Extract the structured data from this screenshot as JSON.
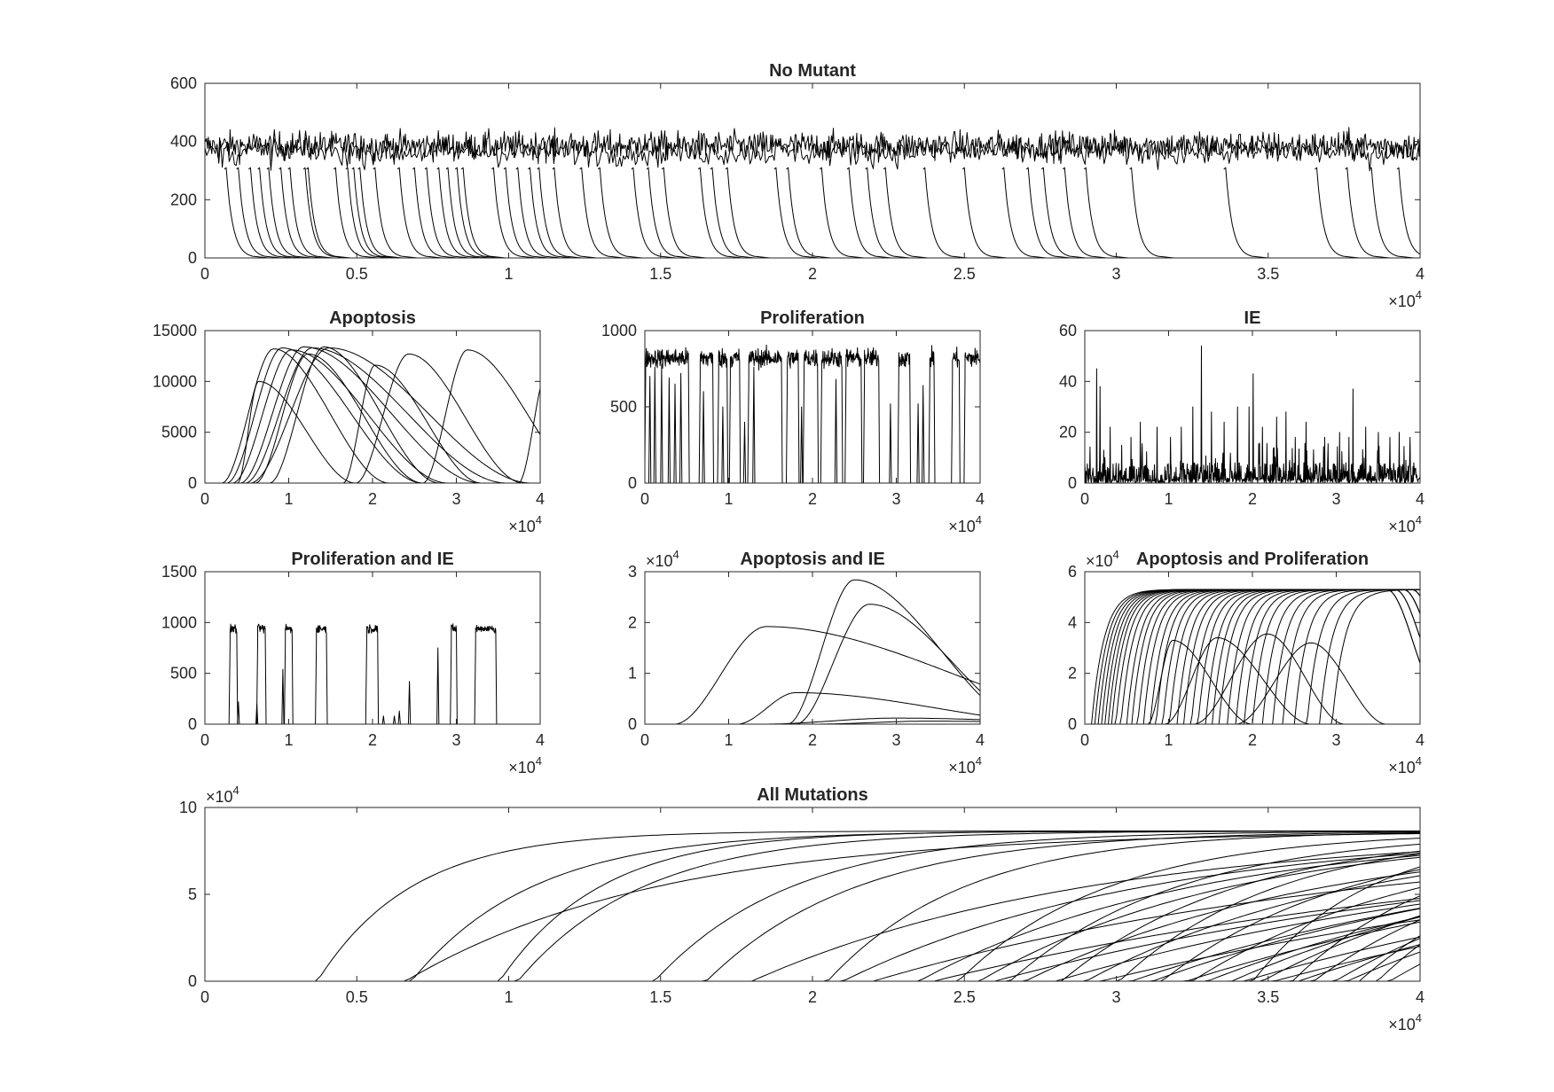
{
  "figure": {
    "background": "#ffffff",
    "line_color": "#000000",
    "axis_color": "#262626"
  },
  "chart_data": [
    {
      "id": "no-mutant",
      "type": "line",
      "title": "No Mutant",
      "xlim": [
        0,
        40000
      ],
      "ylim": [
        0,
        600
      ],
      "x_ticks": [
        0,
        5000,
        10000,
        15000,
        20000,
        25000,
        30000,
        35000,
        40000
      ],
      "x_tick_labels": [
        "0",
        "0.5",
        "1",
        "1.5",
        "2",
        "2.5",
        "3",
        "3.5",
        "4"
      ],
      "x_exponent": "4",
      "y_ticks": [
        0,
        200,
        400,
        600
      ],
      "y_tick_labels": [
        "0",
        "200",
        "400",
        "600"
      ],
      "y_exponent": "",
      "pattern": "noisy_band_with_extinctions",
      "band_level": 385,
      "band_noise": 35,
      "extinction_times": [
        700,
        1100,
        1500,
        1800,
        2100,
        2500,
        2800,
        3300,
        3400,
        4300,
        4700,
        4900,
        5100,
        5600,
        6400,
        6900,
        7300,
        7700,
        8000,
        8300,
        8500,
        9500,
        9900,
        10300,
        10700,
        11000,
        11500,
        12400,
        13000,
        14100,
        14600,
        15100,
        16300,
        16700,
        17200,
        18800,
        19200,
        20300,
        21200,
        21800,
        22400,
        23700,
        25000,
        26300,
        27100,
        27600,
        28300,
        29000,
        30500,
        33600,
        36600,
        37600,
        38400,
        39300
      ],
      "extinction_decay": 220
    },
    {
      "id": "apoptosis",
      "type": "line",
      "title": "Apoptosis",
      "xlim": [
        0,
        40000
      ],
      "ylim": [
        0,
        15000
      ],
      "x_ticks": [
        0,
        10000,
        20000,
        30000,
        40000
      ],
      "x_tick_labels": [
        "0",
        "1",
        "2",
        "3",
        "4"
      ],
      "x_exponent": "4",
      "y_ticks": [
        0,
        5000,
        10000,
        15000
      ],
      "y_tick_labels": [
        "0",
        "5000",
        "10000",
        "15000"
      ],
      "y_exponent": "",
      "pattern": "humps",
      "series": [
        {
          "start": 2000,
          "peak": 8200,
          "peak_value": 13200,
          "end": 22000
        },
        {
          "start": 2600,
          "peak": 9200,
          "peak_value": 13300,
          "end": 26000
        },
        {
          "start": 3300,
          "peak": 10300,
          "peak_value": 13100,
          "end": 29000
        },
        {
          "start": 3900,
          "peak": 6400,
          "peak_value": 10000,
          "end": 18000
        },
        {
          "start": 4200,
          "peak": 11800,
          "peak_value": 13400,
          "end": 33000
        },
        {
          "start": 4800,
          "peak": 12800,
          "peak_value": 13300,
          "end": 36000
        },
        {
          "start": 5400,
          "peak": 14800,
          "peak_value": 13300,
          "end": 39000
        },
        {
          "start": 6000,
          "peak": 12300,
          "peak_value": 12700,
          "end": 26000
        },
        {
          "start": 7700,
          "peak": 14200,
          "peak_value": 13400,
          "end": 28000
        },
        {
          "start": 16500,
          "peak": 20300,
          "peak_value": 11600,
          "end": 33000
        },
        {
          "start": 18000,
          "peak": 24300,
          "peak_value": 12700,
          "end": 38000
        },
        {
          "start": 26000,
          "peak": 31300,
          "peak_value": 13100,
          "end": 46000
        },
        {
          "start": 37400,
          "peak": 41000,
          "peak_value": 11500,
          "end": 52000
        }
      ]
    },
    {
      "id": "proliferation",
      "type": "line",
      "title": "Proliferation",
      "xlim": [
        0,
        40000
      ],
      "ylim": [
        0,
        1000
      ],
      "x_ticks": [
        0,
        10000,
        20000,
        30000,
        40000
      ],
      "x_tick_labels": [
        "0",
        "1",
        "2",
        "3",
        "4"
      ],
      "x_exponent": "4",
      "y_ticks": [
        0,
        500,
        1000
      ],
      "y_tick_labels": [
        "0",
        "500",
        "1000"
      ],
      "y_exponent": "",
      "pattern": "plateaus",
      "plateau_level": 820,
      "plateau_noise": 45,
      "segments": [
        [
          100,
          5200
        ],
        [
          6600,
          8100
        ],
        [
          8800,
          9800
        ],
        [
          10200,
          11300
        ],
        [
          12400,
          16300
        ],
        [
          17000,
          18300
        ],
        [
          19000,
          20600
        ],
        [
          21100,
          23500
        ],
        [
          24000,
          25800
        ],
        [
          26200,
          27900
        ],
        [
          30300,
          31600
        ],
        [
          34000,
          34500
        ],
        [
          36700,
          37500
        ],
        [
          38200,
          40000
        ]
      ],
      "spikes": [
        [
          600,
          700
        ],
        [
          1200,
          760
        ],
        [
          2000,
          780
        ],
        [
          2900,
          690
        ],
        [
          3600,
          650
        ],
        [
          4300,
          720
        ],
        [
          7000,
          600
        ],
        [
          9300,
          500
        ],
        [
          11900,
          400
        ],
        [
          13000,
          760
        ],
        [
          18700,
          500
        ],
        [
          22800,
          680
        ],
        [
          29300,
          520
        ],
        [
          32600,
          520
        ],
        [
          33200,
          640
        ]
      ]
    },
    {
      "id": "ie",
      "type": "line",
      "title": "IE",
      "xlim": [
        0,
        40000
      ],
      "ylim": [
        0,
        60
      ],
      "x_ticks": [
        0,
        10000,
        20000,
        30000,
        40000
      ],
      "x_tick_labels": [
        "0",
        "1",
        "2",
        "3",
        "4"
      ],
      "x_exponent": "4",
      "y_ticks": [
        0,
        20,
        40,
        60
      ],
      "y_tick_labels": [
        "0",
        "20",
        "40",
        "60"
      ],
      "y_exponent": "",
      "pattern": "sparse_spikes",
      "baseline_max": 8,
      "spikes": [
        [
          1400,
          45
        ],
        [
          1800,
          38
        ],
        [
          3000,
          22
        ],
        [
          5500,
          18
        ],
        [
          6600,
          24
        ],
        [
          8600,
          22
        ],
        [
          10200,
          18
        ],
        [
          11500,
          22
        ],
        [
          12900,
          30
        ],
        [
          13900,
          54
        ],
        [
          15100,
          28
        ],
        [
          16600,
          24
        ],
        [
          18200,
          30
        ],
        [
          19600,
          30
        ],
        [
          20100,
          43
        ],
        [
          21200,
          22
        ],
        [
          22900,
          26
        ],
        [
          24000,
          28
        ],
        [
          25100,
          18
        ],
        [
          26400,
          24
        ],
        [
          28600,
          18
        ],
        [
          30400,
          20
        ],
        [
          31500,
          18
        ],
        [
          32000,
          37
        ],
        [
          33500,
          22
        ],
        [
          35000,
          20
        ],
        [
          36400,
          18
        ],
        [
          37500,
          20
        ],
        [
          38800,
          18
        ]
      ]
    },
    {
      "id": "prolif-ie",
      "type": "line",
      "title": "Proliferation and IE",
      "xlim": [
        0,
        40000
      ],
      "ylim": [
        0,
        1500
      ],
      "x_ticks": [
        0,
        10000,
        20000,
        30000,
        40000
      ],
      "x_tick_labels": [
        "0",
        "1",
        "2",
        "3",
        "4"
      ],
      "x_exponent": "4",
      "y_ticks": [
        0,
        500,
        1000,
        1500
      ],
      "y_tick_labels": [
        "0",
        "500",
        "1000",
        "1500"
      ],
      "y_exponent": "",
      "pattern": "plateaus",
      "plateau_level": 940,
      "plateau_noise": 30,
      "segments": [
        [
          3000,
          3800
        ],
        [
          6300,
          7200
        ],
        [
          9600,
          10400
        ],
        [
          13300,
          14500
        ],
        [
          19300,
          20600
        ],
        [
          29400,
          30000
        ],
        [
          32300,
          34700
        ]
      ],
      "spikes": [
        [
          4000,
          220
        ],
        [
          6200,
          200
        ],
        [
          9300,
          540
        ],
        [
          21300,
          80
        ],
        [
          22600,
          80
        ],
        [
          23200,
          130
        ],
        [
          24400,
          420
        ],
        [
          27800,
          750
        ]
      ]
    },
    {
      "id": "apop-ie",
      "type": "line",
      "title": "Apoptosis and IE",
      "xlim": [
        0,
        40000
      ],
      "ylim": [
        0,
        30000
      ],
      "x_ticks": [
        0,
        10000,
        20000,
        30000,
        40000
      ],
      "x_tick_labels": [
        "0",
        "1",
        "2",
        "3",
        "4"
      ],
      "x_exponent": "4",
      "y_ticks": [
        0,
        10000,
        20000,
        30000
      ],
      "y_tick_labels": [
        "0",
        "1",
        "2",
        "3"
      ],
      "y_exponent": "4",
      "pattern": "humps",
      "series": [
        {
          "start": 3500,
          "peak": 14500,
          "peak_value": 19200,
          "end": 60000
        },
        {
          "start": 11000,
          "peak": 18000,
          "peak_value": 6200,
          "end": 52000
        },
        {
          "start": 17000,
          "peak": 25000,
          "peak_value": 28400,
          "end": 46000
        },
        {
          "start": 18000,
          "peak": 26800,
          "peak_value": 23600,
          "end": 47000
        },
        {
          "start": 14000,
          "peak": 30000,
          "peak_value": 1200,
          "end": 60000
        },
        {
          "start": 20000,
          "peak": 34000,
          "peak_value": 600,
          "end": 60000
        }
      ]
    },
    {
      "id": "apop-prolif",
      "type": "line",
      "title": "Apoptosis and Proliferation",
      "xlim": [
        0,
        40000
      ],
      "ylim": [
        0,
        60000
      ],
      "x_ticks": [
        0,
        10000,
        20000,
        30000,
        40000
      ],
      "x_tick_labels": [
        "0",
        "1",
        "2",
        "3",
        "4"
      ],
      "x_exponent": "4",
      "y_ticks": [
        0,
        20000,
        40000,
        60000
      ],
      "y_tick_labels": [
        "0",
        "2",
        "4",
        "6"
      ],
      "y_exponent": "4",
      "pattern": "rise_plateau_decline",
      "plateau_value": 53000,
      "series": [
        {
          "start": 800,
          "decline": 38000
        },
        {
          "start": 1200,
          "decline": 40000
        },
        {
          "start": 1600,
          "decline": 41000
        },
        {
          "start": 2000,
          "decline": 36000
        },
        {
          "start": 2400,
          "decline": 42000
        },
        {
          "start": 2800,
          "decline": 39000
        },
        {
          "start": 3200,
          "decline": 43000
        },
        {
          "start": 3700,
          "decline": 37000
        },
        {
          "start": 4300,
          "decline": 41000
        },
        {
          "start": 5000,
          "decline": 44000
        },
        {
          "start": 5600,
          "decline": 38000
        },
        {
          "start": 6300,
          "decline": 42000
        },
        {
          "start": 7000,
          "decline": 40000
        },
        {
          "start": 7800,
          "decline": 45000
        },
        {
          "start": 8500,
          "decline": 36000
        },
        {
          "start": 9300,
          "decline": 43000
        },
        {
          "start": 10100,
          "decline": 41000
        },
        {
          "start": 11000,
          "decline": 39000
        },
        {
          "start": 11800,
          "decline": 44000
        },
        {
          "start": 12700,
          "decline": 37000
        },
        {
          "start": 13500,
          "decline": 42000
        },
        {
          "start": 14400,
          "decline": 40000
        },
        {
          "start": 15200,
          "decline": 45000
        },
        {
          "start": 16000,
          "decline": 38000
        },
        {
          "start": 17000,
          "decline": 43000
        },
        {
          "start": 18000,
          "decline": 41000
        },
        {
          "start": 19000,
          "decline": 44000
        },
        {
          "start": 20000,
          "decline": 39000
        },
        {
          "start": 21200,
          "decline": 42000
        },
        {
          "start": 22400,
          "decline": 45000
        },
        {
          "start": 23600,
          "decline": 41000
        },
        {
          "start": 25000,
          "decline": 44000
        },
        {
          "start": 26500,
          "decline": 43000
        },
        {
          "start": 28000,
          "decline": 45000
        },
        {
          "start": 29500,
          "decline": 44000
        }
      ],
      "humps": [
        {
          "start": 7500,
          "peak": 10500,
          "peak_value": 33000,
          "end": 20000
        },
        {
          "start": 9500,
          "peak": 15800,
          "peak_value": 34000,
          "end": 27000
        },
        {
          "start": 13000,
          "peak": 21800,
          "peak_value": 35500,
          "end": 31000
        },
        {
          "start": 18000,
          "peak": 27000,
          "peak_value": 32000,
          "end": 36000
        }
      ]
    },
    {
      "id": "all-mutations",
      "type": "line",
      "title": "All Mutations",
      "xlim": [
        0,
        40000
      ],
      "ylim": [
        0,
        100000
      ],
      "x_ticks": [
        0,
        5000,
        10000,
        15000,
        20000,
        25000,
        30000,
        35000,
        40000
      ],
      "x_tick_labels": [
        "0",
        "0.5",
        "1",
        "1.5",
        "2",
        "2.5",
        "3",
        "3.5",
        "4"
      ],
      "x_exponent": "4",
      "y_ticks": [
        0,
        50000,
        100000
      ],
      "y_tick_labels": [
        "0",
        "5",
        "10"
      ],
      "y_exponent": "4",
      "pattern": "logistic",
      "carrying_capacity": 86500,
      "series": [
        {
          "start": 3700,
          "rate": 0.00032
        },
        {
          "start": 6800,
          "rate": 0.00025
        },
        {
          "start": 9700,
          "rate": 0.0003
        },
        {
          "start": 10300,
          "rate": 0.00024
        },
        {
          "start": 6600,
          "rate": 0.00012
        },
        {
          "start": 14800,
          "rate": 0.00022
        },
        {
          "start": 16500,
          "rate": 0.0002
        },
        {
          "start": 20500,
          "rate": 0.00022
        },
        {
          "start": 24800,
          "rate": 0.0002
        },
        {
          "start": 26500,
          "rate": 0.00018
        },
        {
          "start": 28200,
          "rate": 0.00017
        },
        {
          "start": 30100,
          "rate": 0.00019
        },
        {
          "start": 31500,
          "rate": 0.00016
        },
        {
          "start": 34500,
          "rate": 0.00026
        },
        {
          "start": 35800,
          "rate": 0.0002
        },
        {
          "start": 18000,
          "rate": 9e-05
        },
        {
          "start": 21000,
          "rate": 0.0001
        },
        {
          "start": 23500,
          "rate": 0.00011
        },
        {
          "start": 25500,
          "rate": 0.00012
        },
        {
          "start": 27000,
          "rate": 0.0001
        },
        {
          "start": 29000,
          "rate": 0.00011
        },
        {
          "start": 32500,
          "rate": 0.00013
        },
        {
          "start": 33800,
          "rate": 9e-05
        },
        {
          "start": 36500,
          "rate": 0.00015
        },
        {
          "start": 37200,
          "rate": 0.00012
        },
        {
          "start": 38000,
          "rate": 0.00018
        },
        {
          "start": 38600,
          "rate": 0.0002
        },
        {
          "start": 30500,
          "rate": 7e-05
        },
        {
          "start": 31200,
          "rate": 7.5e-05
        },
        {
          "start": 32300,
          "rate": 6.5e-05
        },
        {
          "start": 33000,
          "rate": 8e-05
        },
        {
          "start": 34200,
          "rate": 6e-05
        },
        {
          "start": 35200,
          "rate": 5.5e-05
        },
        {
          "start": 36000,
          "rate": 7e-05
        },
        {
          "start": 22000,
          "rate": 6e-05
        },
        {
          "start": 24000,
          "rate": 5e-05
        },
        {
          "start": 26000,
          "rate": 5.5e-05
        },
        {
          "start": 28000,
          "rate": 6e-05
        },
        {
          "start": 29500,
          "rate": 5e-05
        },
        {
          "start": 34800,
          "rate": 0.00011
        },
        {
          "start": 37600,
          "rate": 9e-05
        },
        {
          "start": 39000,
          "rate": 0.00012
        }
      ]
    }
  ]
}
